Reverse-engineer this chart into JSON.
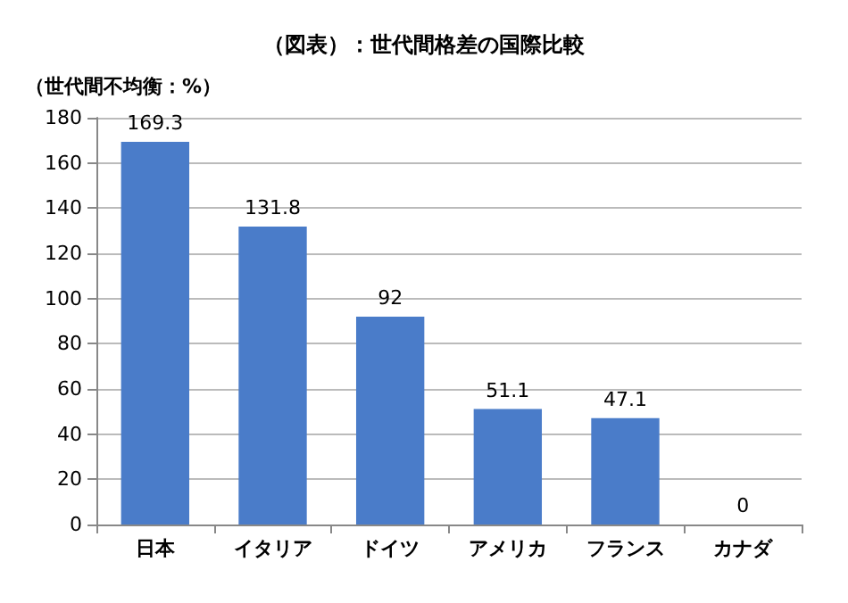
{
  "chart_data": {
    "type": "bar",
    "title": "（図表）：世代間格差の国際比較",
    "ylabel": "（世代間不均衡：%）",
    "categories": [
      "日本",
      "イタリア",
      "ドイツ",
      "アメリカ",
      "フランス",
      "カナダ"
    ],
    "values": [
      169.3,
      131.8,
      92,
      51.1,
      47.1,
      0
    ],
    "color": "#4a7cc9",
    "ylim": [
      0,
      180
    ],
    "yticks": [
      0,
      20,
      40,
      60,
      80,
      100,
      120,
      140,
      160,
      180
    ],
    "grid": "y",
    "data_labels": true
  }
}
